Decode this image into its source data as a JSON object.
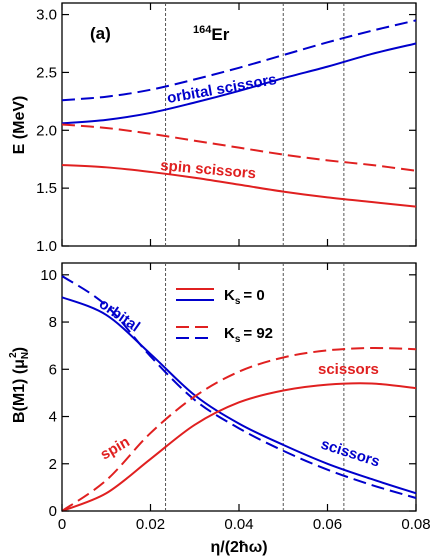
{
  "colors": {
    "blue": "#0000cc",
    "red": "#e02020"
  },
  "chart_data": [
    {
      "type": "line",
      "panel_label": "(a)",
      "nucleus": {
        "mass": "164",
        "element": "Er"
      },
      "ylabel": "E (MeV)",
      "xlim": [
        0,
        0.08
      ],
      "ylim": [
        1.0,
        3.1
      ],
      "yticks": [
        1.0,
        1.5,
        2.0,
        2.5,
        3.0
      ],
      "ytick_labels": [
        "1.0",
        "1.5",
        "2.0",
        "2.5",
        "3.0"
      ],
      "vlines": [
        0.0234,
        0.05,
        0.0637
      ],
      "annotations": [
        "orbital scissors",
        "spin scissors"
      ],
      "series": [
        {
          "color": "blue",
          "style": "solid",
          "x": [
            0,
            0.01,
            0.02,
            0.03,
            0.04,
            0.05,
            0.06,
            0.07,
            0.08
          ],
          "y": [
            2.06,
            2.09,
            2.15,
            2.24,
            2.34,
            2.45,
            2.55,
            2.66,
            2.75
          ]
        },
        {
          "color": "blue",
          "style": "dashed",
          "x": [
            0,
            0.01,
            0.02,
            0.03,
            0.04,
            0.05,
            0.06,
            0.07,
            0.08
          ],
          "y": [
            2.26,
            2.29,
            2.35,
            2.44,
            2.54,
            2.65,
            2.76,
            2.86,
            2.95
          ]
        },
        {
          "color": "red",
          "style": "dashed",
          "x": [
            0,
            0.01,
            0.02,
            0.03,
            0.04,
            0.05,
            0.06,
            0.07,
            0.08
          ],
          "y": [
            2.05,
            2.02,
            1.97,
            1.91,
            1.85,
            1.79,
            1.74,
            1.7,
            1.65
          ]
        },
        {
          "color": "red",
          "style": "solid",
          "x": [
            0,
            0.01,
            0.02,
            0.03,
            0.04,
            0.05,
            0.06,
            0.07,
            0.08
          ],
          "y": [
            1.7,
            1.68,
            1.64,
            1.59,
            1.53,
            1.47,
            1.42,
            1.38,
            1.34
          ]
        }
      ]
    },
    {
      "type": "line",
      "ylabel": "B(M1) (μ",
      "ylabel_sub": "N",
      "ylabel_sup": "2",
      "ylabel_end": ")",
      "xlabel": "η/(2ħω)",
      "xlim": [
        0,
        0.08
      ],
      "ylim": [
        0,
        10.5
      ],
      "xticks": [
        0,
        0.02,
        0.04,
        0.06,
        0.08
      ],
      "xtick_labels": [
        "0",
        "0.02",
        "0.04",
        "0.06",
        "0.08"
      ],
      "yticks": [
        0,
        2,
        4,
        6,
        8,
        10
      ],
      "ytick_labels": [
        "0",
        "2",
        "4",
        "6",
        "8",
        "10"
      ],
      "vlines": [
        0.0234,
        0.05,
        0.0637
      ],
      "annotations": [
        "orbital",
        "scissors",
        "spin",
        "scissors"
      ],
      "legend": {
        "placement": "top-center",
        "entries": [
          {
            "label_main": "K",
            "label_sub": "s",
            "label_value": "= 0",
            "styles": [
              "solid-red",
              "solid-blue"
            ]
          },
          {
            "label_main": "K",
            "label_sub": "s",
            "label_value": "= 92",
            "styles": [
              "dashed-red",
              "dashed-blue"
            ]
          }
        ]
      },
      "series": [
        {
          "color": "blue",
          "style": "solid",
          "x": [
            0,
            0.01,
            0.02,
            0.03,
            0.04,
            0.05,
            0.06,
            0.07,
            0.08
          ],
          "y": [
            9.05,
            8.3,
            6.65,
            4.9,
            3.7,
            2.8,
            2.0,
            1.35,
            0.75
          ]
        },
        {
          "color": "blue",
          "style": "dashed",
          "x": [
            0,
            0.01,
            0.02,
            0.03,
            0.04,
            0.05,
            0.06,
            0.07,
            0.08
          ],
          "y": [
            9.95,
            8.7,
            6.55,
            4.7,
            3.5,
            2.55,
            1.75,
            1.1,
            0.55
          ]
        },
        {
          "color": "red",
          "style": "dashed",
          "x": [
            0,
            0.01,
            0.02,
            0.03,
            0.04,
            0.05,
            0.06,
            0.07,
            0.08
          ],
          "y": [
            0,
            1.3,
            3.3,
            4.85,
            5.9,
            6.5,
            6.8,
            6.9,
            6.85
          ]
        },
        {
          "color": "red",
          "style": "solid",
          "x": [
            0,
            0.01,
            0.02,
            0.03,
            0.04,
            0.05,
            0.06,
            0.07,
            0.08
          ],
          "y": [
            0,
            0.75,
            2.2,
            3.65,
            4.6,
            5.1,
            5.35,
            5.4,
            5.2
          ]
        }
      ]
    }
  ]
}
